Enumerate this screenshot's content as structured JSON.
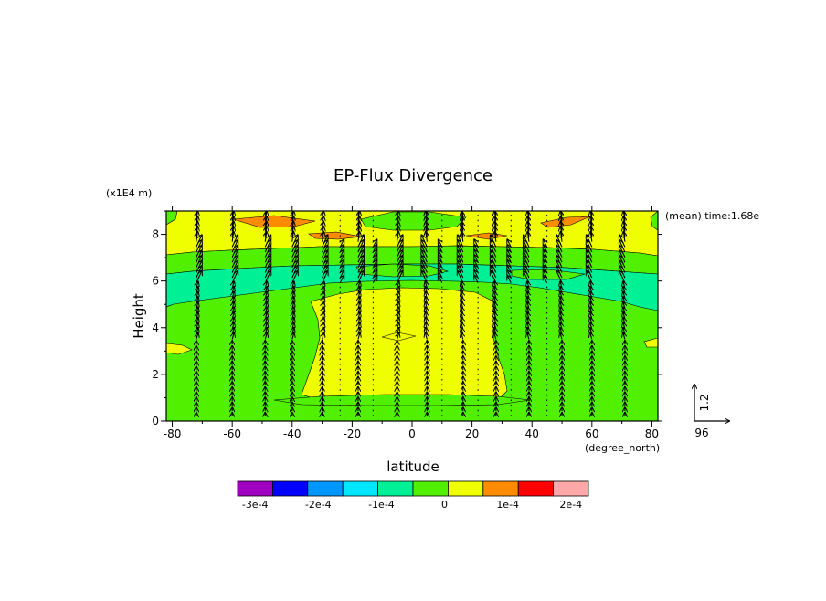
{
  "chart_data": {
    "type": "heatmap",
    "title": "EP-Flux Divergence",
    "xlabel": "latitude",
    "xunit": "(degree_north)",
    "ylabel": "Height",
    "yunit": "(x1E4 m)",
    "annotation": "(mean) time:1.68e",
    "xlim": [
      -82,
      82
    ],
    "ylim": [
      0,
      9
    ],
    "xticks": [
      -80,
      -60,
      -40,
      -20,
      0,
      20,
      40,
      60,
      80
    ],
    "yticks": [
      0,
      2,
      4,
      6,
      8
    ],
    "xtick_labels": [
      "-80",
      "-60",
      "-40",
      "-20",
      "0",
      "20",
      "40",
      "60",
      "80"
    ],
    "ytick_labels": [
      "0",
      "2",
      "4",
      "6",
      "8"
    ],
    "colorbar": {
      "colors": [
        "#a000c0",
        "#0000ff",
        "#0096ff",
        "#00e6ff",
        "#00f096",
        "#50f000",
        "#f0ff00",
        "#ff8c00",
        "#ff0000",
        "#ffa8a8"
      ],
      "ticks": [
        -0.0003,
        -0.0002,
        -0.0001,
        0,
        0.0001,
        0.0002
      ],
      "tick_labels": [
        "-3e-4",
        "-2e-4",
        "-1e-4",
        "0",
        "1e-4",
        "2e-4"
      ]
    },
    "regions": [
      {
        "level": "0 to 5e-5",
        "color": "#f0ff00",
        "description": "upper layer 7.6-9"
      },
      {
        "level": "-5e-5 to 0",
        "color": "#50f000",
        "description": "band 7.0-7.6"
      },
      {
        "level": "-1e-4 to -5e-5",
        "color": "#00f096",
        "description": "layer 5.8-7.0"
      },
      {
        "level": "-5e-5 to 0",
        "color": "#50f000",
        "description": "lower troposphere"
      },
      {
        "level": "0 to 5e-5",
        "color": "#f0ff00",
        "description": "equatorial tongue"
      },
      {
        "level": "5e-5 to 1e-4",
        "color": "#ff8c00",
        "description": "patches near 8.3"
      }
    ],
    "vector_reference": {
      "x_label": "96",
      "y_label": "1.2"
    }
  }
}
